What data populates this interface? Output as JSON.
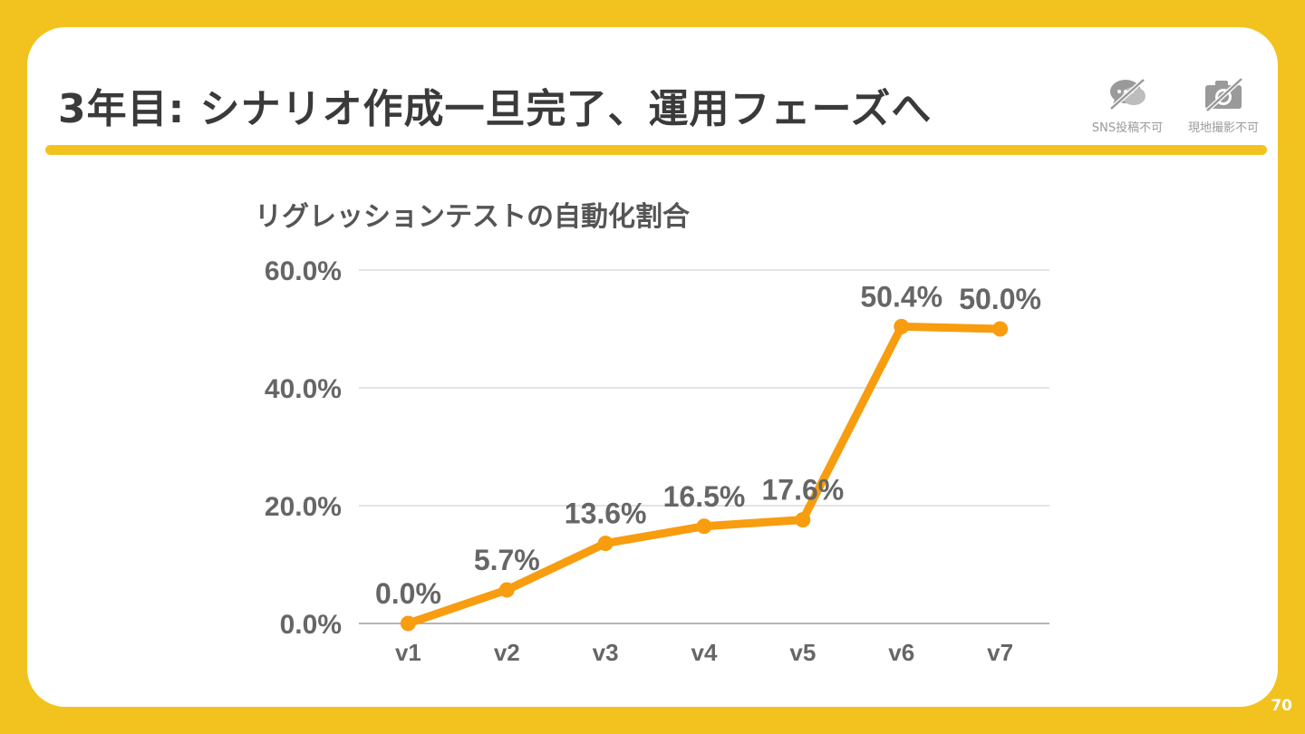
{
  "slide": {
    "title": "3年目: シナリオ作成一旦完了、運用フェーズへ",
    "page_number": "70",
    "badges": [
      {
        "icon": "no-sns-icon",
        "label": "SNS投稿不可"
      },
      {
        "icon": "no-camera-icon",
        "label": "現地撮影不可"
      }
    ],
    "colors": {
      "background": "#F2C31F",
      "accent": "#F2C31F",
      "line": "#F79D0F"
    }
  },
  "chart_data": {
    "type": "line",
    "title": "リグレッションテストの自動化割合",
    "categories": [
      "v1",
      "v2",
      "v3",
      "v4",
      "v5",
      "v6",
      "v7"
    ],
    "values": [
      0.0,
      5.7,
      13.6,
      16.5,
      17.6,
      50.4,
      50.0
    ],
    "data_labels": [
      "0.0%",
      "5.7%",
      "13.6%",
      "16.5%",
      "17.6%",
      "50.4%",
      "50.0%"
    ],
    "y_ticks": [
      {
        "value": 0,
        "label": "0.0%"
      },
      {
        "value": 20,
        "label": "20.0%"
      },
      {
        "value": 40,
        "label": "40.0%"
      },
      {
        "value": 60,
        "label": "60.0%"
      }
    ],
    "ylim": [
      0,
      60
    ],
    "xlabel": "",
    "ylabel": "",
    "grid": true,
    "legend": "none"
  }
}
